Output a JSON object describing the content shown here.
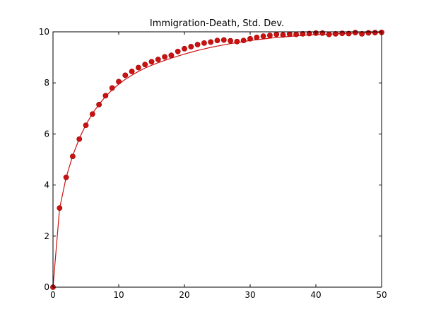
{
  "chart_data": {
    "type": "line",
    "title": "Immigration-Death, Std. Dev.",
    "xlabel": "",
    "ylabel": "",
    "xlim": [
      0,
      50
    ],
    "ylim": [
      0,
      10
    ],
    "xticks": [
      0,
      10,
      20,
      30,
      40,
      50
    ],
    "yticks": [
      0,
      2,
      4,
      6,
      8,
      10
    ],
    "grid": false,
    "colors": {
      "series": "#cc1111",
      "marker_edge": "#990000",
      "axes": "#000000"
    },
    "series": [
      {
        "style": "line",
        "x": [
          0,
          1,
          2,
          3,
          4,
          5,
          6,
          7,
          8,
          9,
          10,
          11,
          12,
          13,
          14,
          15,
          16,
          17,
          18,
          19,
          20,
          21,
          22,
          23,
          24,
          25,
          26,
          27,
          28,
          29,
          30,
          31,
          32,
          33,
          34,
          35,
          36,
          37,
          38,
          39,
          40,
          41,
          42,
          43,
          44,
          45,
          46,
          47,
          48,
          49,
          50
        ],
        "y": [
          0.0,
          3.08,
          4.3,
          5.15,
          5.82,
          6.36,
          6.8,
          7.16,
          7.47,
          7.73,
          7.95,
          8.14,
          8.3,
          8.45,
          8.58,
          8.69,
          8.79,
          8.88,
          8.97,
          9.05,
          9.13,
          9.2,
          9.27,
          9.33,
          9.39,
          9.44,
          9.49,
          9.54,
          9.58,
          9.62,
          9.66,
          9.69,
          9.72,
          9.75,
          9.78,
          9.8,
          9.82,
          9.84,
          9.86,
          9.88,
          9.89,
          9.9,
          9.91,
          9.92,
          9.93,
          9.94,
          9.95,
          9.96,
          9.96,
          9.97,
          9.97
        ]
      },
      {
        "style": "markers",
        "x": [
          0,
          1,
          2,
          3,
          4,
          5,
          6,
          7,
          8,
          9,
          10,
          11,
          12,
          13,
          14,
          15,
          16,
          17,
          18,
          19,
          20,
          21,
          22,
          23,
          24,
          25,
          26,
          27,
          28,
          29,
          30,
          31,
          32,
          33,
          34,
          35,
          36,
          37,
          38,
          39,
          40,
          41,
          42,
          43,
          44,
          45,
          46,
          47,
          48,
          49,
          50
        ],
        "y": [
          0.0,
          3.1,
          4.3,
          5.12,
          5.8,
          6.34,
          6.78,
          7.15,
          7.5,
          7.8,
          8.05,
          8.3,
          8.45,
          8.6,
          8.72,
          8.83,
          8.92,
          9.02,
          9.08,
          9.23,
          9.34,
          9.42,
          9.5,
          9.56,
          9.6,
          9.66,
          9.68,
          9.65,
          9.62,
          9.66,
          9.73,
          9.78,
          9.83,
          9.86,
          9.9,
          9.88,
          9.91,
          9.9,
          9.92,
          9.93,
          9.95,
          9.95,
          9.9,
          9.92,
          9.94,
          9.93,
          9.97,
          9.92,
          9.96,
          9.97,
          9.98
        ]
      }
    ]
  }
}
